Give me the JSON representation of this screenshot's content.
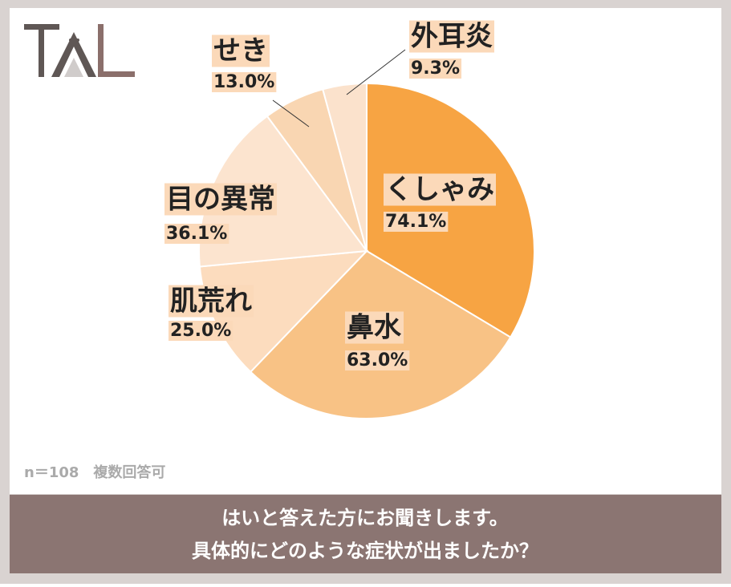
{
  "chart_data": {
    "type": "pie",
    "title": [
      "はいと答えた方にお聞きします。",
      "具体的にどのような症状が出ましたか？"
    ],
    "note": "n＝108　複数回答可",
    "categories": [
      "くしゃみ",
      "鼻水",
      "肌荒れ",
      "目の異常",
      "せき",
      "外耳炎"
    ],
    "values": [
      74.1,
      63.0,
      25.0,
      36.1,
      13.0,
      9.3
    ],
    "value_labels": [
      "74.1%",
      "63.0%",
      "25.0%",
      "36.1%",
      "13.0%",
      "9.3%"
    ],
    "colors": [
      "#f7a443",
      "#f8c285",
      "#fcdcbe",
      "#fce4cf",
      "#f9d6b2",
      "#fbe2cc"
    ]
  }
}
